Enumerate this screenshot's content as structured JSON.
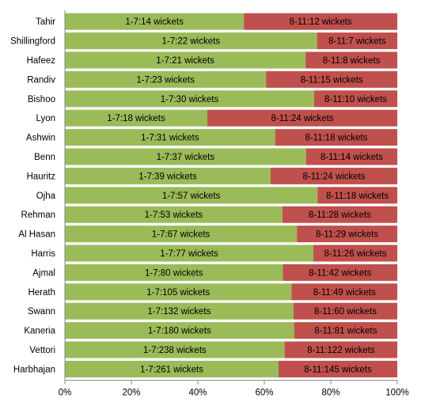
{
  "chart_data": {
    "type": "bar",
    "orientation": "horizontal",
    "stacked": "percent",
    "grid": false,
    "legend": "none",
    "categories": [
      "Tahir",
      "Shillingford",
      "Hafeez",
      "Randiv",
      "Bishoo",
      "Lyon",
      "Ashwin",
      "Benn",
      "Hauritz",
      "Ojha",
      "Rehman",
      "Al Hasan",
      "Harris",
      "Ajmal",
      "Herath",
      "Swann",
      "Kaneria",
      "Vettori",
      "Harbhajan"
    ],
    "series": [
      {
        "color": "#9bbb59",
        "values": [
          14,
          22,
          21,
          23,
          30,
          18,
          31,
          37,
          39,
          57,
          53,
          67,
          77,
          80,
          105,
          132,
          180,
          238,
          261
        ],
        "labels": [
          "1-7:14 wickets",
          "1-7:22 wickets",
          "1-7:21 wickets",
          "1-7:23 wickets",
          "1-7:30 wickets",
          "1-7:18 wickets",
          "1-7:31 wickets",
          "1-7:37 wickets",
          "1-7:39 wickets",
          "1-7:57 wickets",
          "1-7:53 wickets",
          "1-7:67 wickets",
          "1-7:77 wickets",
          "1-7:80 wickets",
          "1-7:105 wickets",
          "1-7:132 wickets",
          "1-7:180 wickets",
          "1-7:238 wickets",
          "1-7:261 wickets"
        ]
      },
      {
        "color": "#c0504d",
        "values": [
          12,
          7,
          8,
          15,
          10,
          24,
          18,
          14,
          24,
          18,
          28,
          29,
          26,
          42,
          49,
          60,
          81,
          122,
          145
        ],
        "labels": [
          "8-11:12 wickets",
          "8-11:7 wickets",
          "8-11:8 wickets",
          "8-11:15 wickets",
          "8-11:10 wickets",
          "8-11:24 wickets",
          "8-11:18 wickets",
          "8-11:14 wickets",
          "8-11:24 wickets",
          "8-11:18 wickets",
          "8-11:28 wickets",
          "8-11:29 wickets",
          "8-11:26 wickets",
          "8-11:42 wickets",
          "8-11:49 wickets",
          "8-11:60 wickets",
          "8-11:81 wickets",
          "8-11:122 wickets",
          "8-11:145 wickets"
        ]
      }
    ],
    "x_ticks": [
      "0%",
      "20%",
      "40%",
      "60%",
      "80%",
      "100%"
    ],
    "xlim": [
      0,
      100
    ]
  }
}
